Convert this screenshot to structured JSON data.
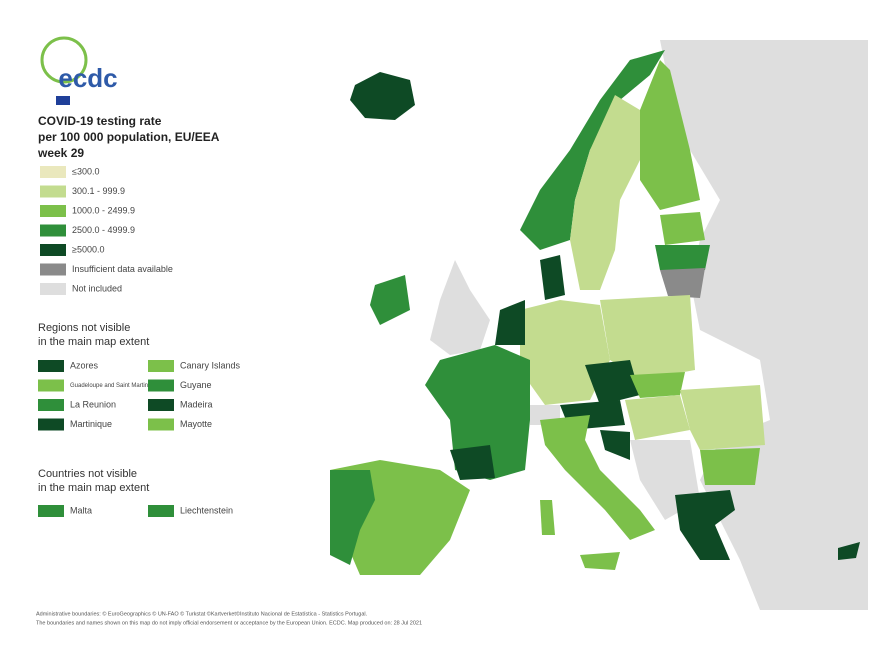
{
  "logo": {
    "text": "ecdc"
  },
  "title": [
    "COVID-19 testing rate",
    "per 100 000 population, EU/EEA",
    "week 29"
  ],
  "legend": {
    "items": [
      {
        "label": "≤300.0",
        "color": "#eae8bd"
      },
      {
        "label": "300.1 - 999.9",
        "color": "#c3dc8f"
      },
      {
        "label": "1000.0 - 2499.9",
        "color": "#7cc04a"
      },
      {
        "label": "2500.0 - 4999.9",
        "color": "#2f8f3a"
      },
      {
        "label": "≥5000.0",
        "color": "#0e4a25"
      },
      {
        "label": "Insufficient data available",
        "color": "#8a8a8a"
      },
      {
        "label": "Not included",
        "color": "#dedede"
      }
    ]
  },
  "regions_legend": {
    "title": [
      "Regions not visible",
      "in the main map extent"
    ],
    "items": [
      {
        "label": "Azores",
        "color": "#0e4a25"
      },
      {
        "label": "Canary Islands",
        "color": "#7cc04a"
      },
      {
        "label": "Guadeloupe and Saint Martin",
        "color": "#7cc04a"
      },
      {
        "label": "Guyane",
        "color": "#2f8f3a"
      },
      {
        "label": "La Reunion",
        "color": "#2f8f3a"
      },
      {
        "label": "Madeira",
        "color": "#0e4a25"
      },
      {
        "label": "Martinique",
        "color": "#0e4a25"
      },
      {
        "label": "Mayotte",
        "color": "#7cc04a"
      }
    ]
  },
  "countries_legend": {
    "title": [
      "Countries not visible",
      "in the main map extent"
    ],
    "items": [
      {
        "label": "Malta",
        "color": "#2f8f3a"
      },
      {
        "label": "Liechtenstein",
        "color": "#2f8f3a"
      }
    ]
  },
  "footer": [
    "Administrative boundaries: © EuroGeographics © UN-FAO © Turkstat ©Kartverket©Instituto Nacional de Estatística - Statistics Portugal.",
    "The boundaries and names shown on this map do not imply official endorsement or acceptance by the European Union. ECDC. Map produced on: 28 Jul 2021"
  ]
}
